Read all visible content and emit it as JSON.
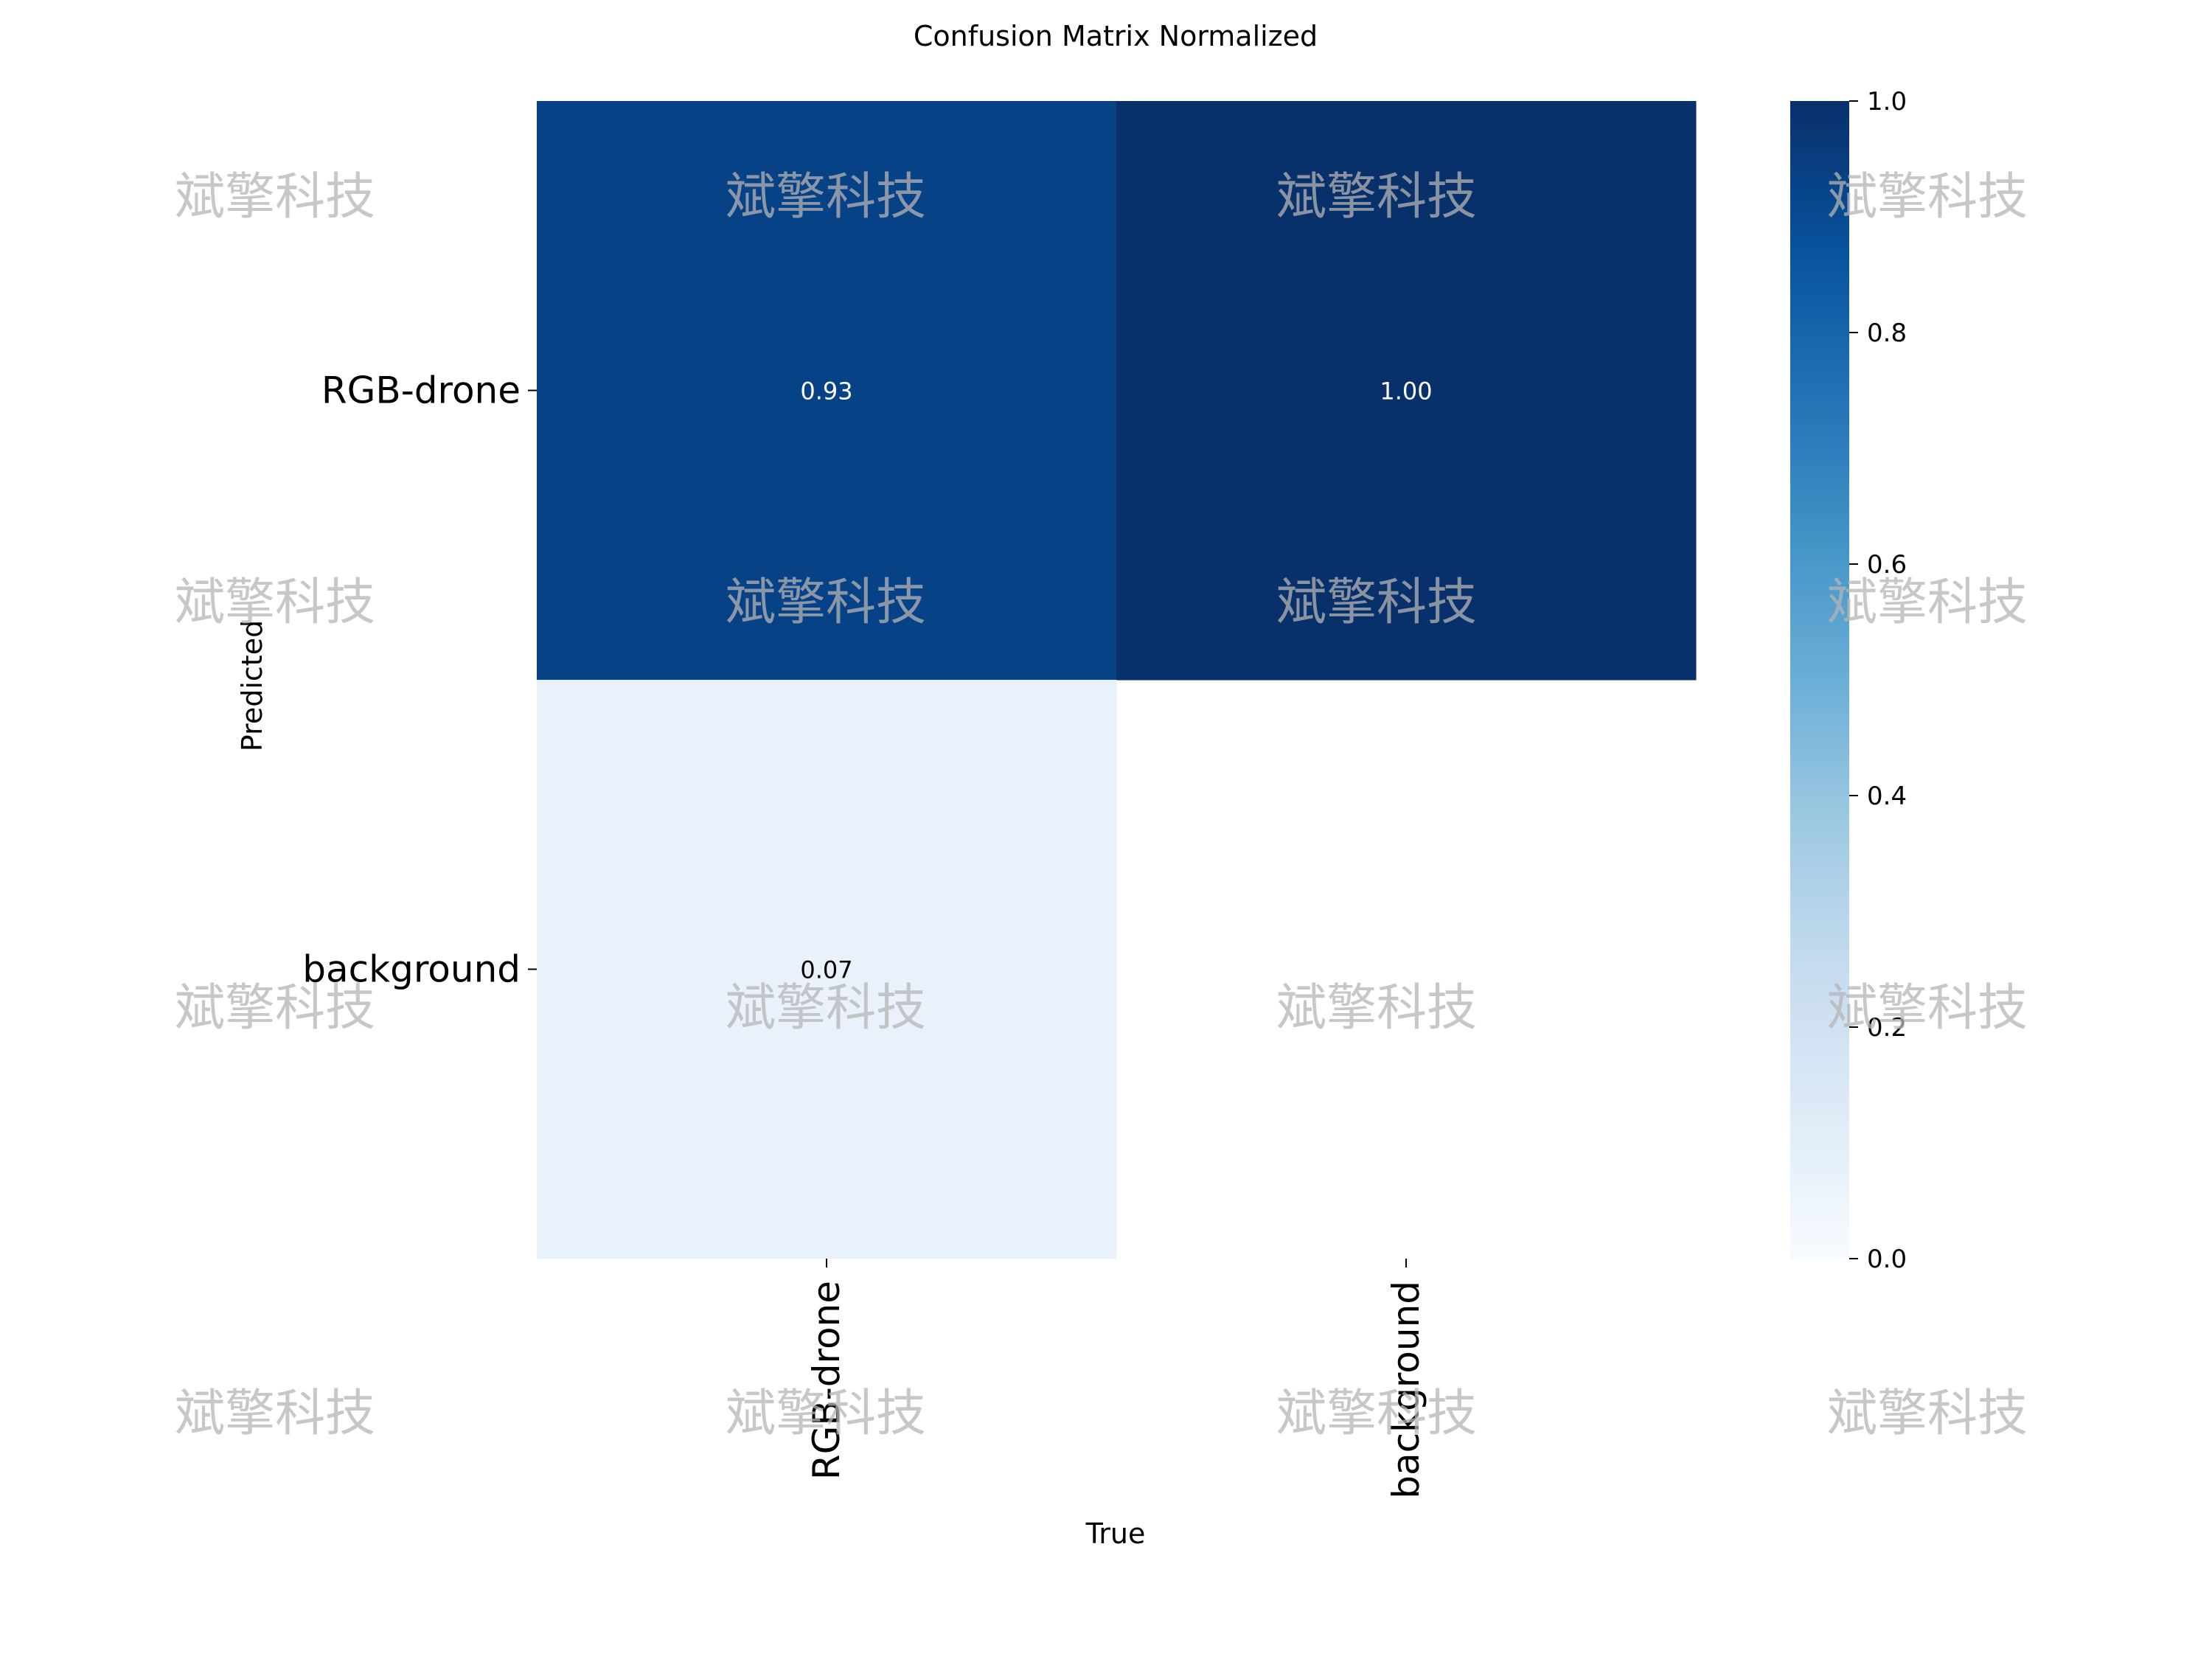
{
  "chart_data": {
    "type": "heatmap",
    "title": "Confusion Matrix Normalized",
    "xlabel": "True",
    "ylabel": "Predicted",
    "x_categories": [
      "RGB-drone",
      "background"
    ],
    "y_categories": [
      "RGB-drone",
      "background"
    ],
    "values": [
      [
        0.93,
        1.0
      ],
      [
        0.07,
        null
      ]
    ],
    "cell_labels": [
      [
        "0.93",
        "1.00"
      ],
      [
        "0.07",
        ""
      ]
    ],
    "colormap": "Blues",
    "vmin": 0.0,
    "vmax": 1.0,
    "colorbar_ticks": [
      "0.0",
      "0.2",
      "0.4",
      "0.6",
      "0.8",
      "1.0"
    ],
    "colorbar_tick_values": [
      0.0,
      0.2,
      0.4,
      0.6,
      0.8,
      1.0
    ],
    "grid": false,
    "colorbar_position": "right"
  },
  "watermark": {
    "text": "斌擎科技",
    "color": "#b4b4b4"
  },
  "colors": {
    "cmap_stops": [
      "#f7fbff",
      "#deebf7",
      "#c6dbef",
      "#9ecae1",
      "#6baed6",
      "#4292c6",
      "#2171b5",
      "#08519c",
      "#08306b"
    ],
    "text_dark": "#000000",
    "text_light": "#ffffff"
  }
}
